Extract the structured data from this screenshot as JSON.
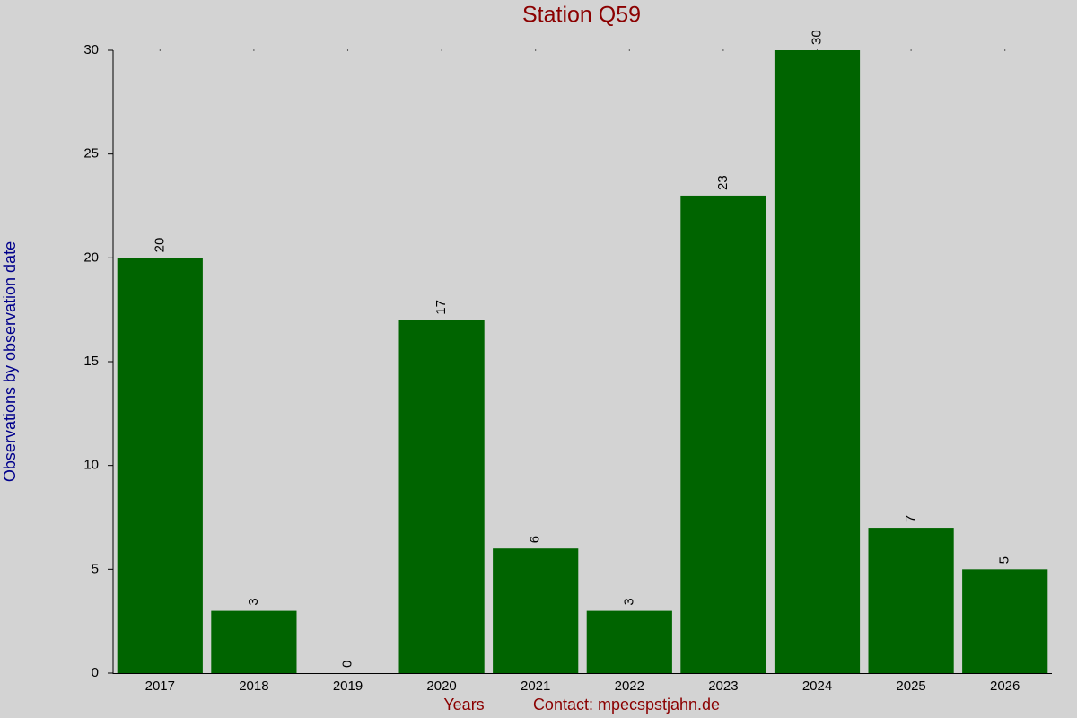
{
  "chart_data": {
    "type": "bar",
    "title": "Station Q59",
    "x_label": "Years",
    "y_label": "Observations by observation date",
    "annotation": "Contact: mpecspstjahn.de",
    "categories": [
      "2017",
      "2018",
      "2019",
      "2020",
      "2021",
      "2022",
      "2023",
      "2024",
      "2025",
      "2026"
    ],
    "values": [
      20,
      3,
      0,
      17,
      6,
      3,
      23,
      30,
      7,
      5
    ],
    "color": "#006400",
    "ylim": [
      0,
      30
    ],
    "yticks": [
      0,
      5,
      10,
      15,
      20,
      25,
      30
    ],
    "grid": false
  }
}
